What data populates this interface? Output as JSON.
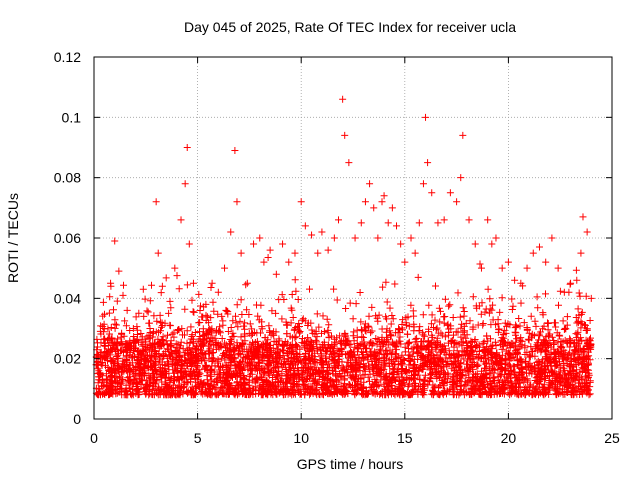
{
  "chart_data": {
    "type": "scatter",
    "title": "Day 045 of 2025, Rate Of TEC Index for receiver ucla",
    "xlabel": "GPS time / hours",
    "ylabel": "ROTI / TECUs",
    "xlim": [
      0,
      25
    ],
    "ylim": [
      0,
      0.12
    ],
    "x_ticks": [
      "0",
      "5",
      "10",
      "15",
      "20",
      "25"
    ],
    "y_ticks": [
      "0",
      "0.02",
      "0.04",
      "0.06",
      "0.08",
      "0.1",
      "0.12"
    ],
    "grid": true,
    "legend": "none",
    "marker": "plus",
    "series_color": "#ff0000",
    "series": [
      {
        "x": [
          0.1,
          0.3,
          0.5,
          0.8,
          1.0,
          1.2,
          1.4,
          1.6,
          1.9,
          2.1,
          2.4,
          2.7,
          3.0,
          3.1,
          3.3,
          3.6,
          3.9,
          4.2,
          4.4,
          4.5,
          4.6,
          4.8,
          5.1,
          5.4,
          5.7,
          6.0,
          6.3,
          6.6,
          6.8,
          6.9,
          7.1,
          7.4,
          7.7,
          8.0,
          8.2,
          8.5,
          8.8,
          9.1,
          9.4,
          9.7,
          10.0,
          10.2,
          10.5,
          10.8,
          11.0,
          11.3,
          11.6,
          11.8,
          12.0,
          12.1,
          12.3,
          12.6,
          12.9,
          13.1,
          13.3,
          13.5,
          13.7,
          13.9,
          14.0,
          14.2,
          14.4,
          14.6,
          14.8,
          15.0,
          15.3,
          15.5,
          15.7,
          15.9,
          16.0,
          16.1,
          16.3,
          16.6,
          16.9,
          17.2,
          17.5,
          17.7,
          17.8,
          18.1,
          18.4,
          18.7,
          19.0,
          19.2,
          19.4,
          19.7,
          20.0,
          20.3,
          20.6,
          20.9,
          21.2,
          21.5,
          21.8,
          22.1,
          22.4,
          22.7,
          23.0,
          23.3,
          23.5,
          23.6,
          23.8,
          24.0,
          0.2,
          0.6,
          1.1,
          1.7,
          2.3,
          3.2,
          4.0,
          5.0,
          5.9,
          6.5,
          7.6,
          8.6,
          9.6,
          10.6,
          11.5,
          12.5,
          13.6,
          14.5,
          15.4,
          16.5,
          17.4,
          18.5,
          19.5,
          20.5,
          21.5,
          22.5,
          23.4
        ],
        "y": [
          0.018,
          0.022,
          0.03,
          0.045,
          0.059,
          0.049,
          0.041,
          0.036,
          0.03,
          0.028,
          0.034,
          0.03,
          0.072,
          0.055,
          0.044,
          0.035,
          0.05,
          0.066,
          0.078,
          0.09,
          0.058,
          0.045,
          0.032,
          0.038,
          0.045,
          0.042,
          0.05,
          0.062,
          0.089,
          0.072,
          0.055,
          0.045,
          0.058,
          0.06,
          0.052,
          0.056,
          0.048,
          0.058,
          0.052,
          0.055,
          0.072,
          0.064,
          0.061,
          0.055,
          0.062,
          0.056,
          0.06,
          0.066,
          0.106,
          0.094,
          0.085,
          0.06,
          0.065,
          0.072,
          0.078,
          0.07,
          0.06,
          0.072,
          0.074,
          0.065,
          0.07,
          0.064,
          0.058,
          0.052,
          0.06,
          0.055,
          0.065,
          0.078,
          0.1,
          0.085,
          0.075,
          0.065,
          0.066,
          0.075,
          0.072,
          0.08,
          0.094,
          0.066,
          0.058,
          0.05,
          0.066,
          0.058,
          0.06,
          0.05,
          0.052,
          0.046,
          0.045,
          0.05,
          0.055,
          0.057,
          0.052,
          0.06,
          0.05,
          0.042,
          0.045,
          0.046,
          0.055,
          0.067,
          0.062,
          0.04,
          0.012,
          0.015,
          0.014,
          0.016,
          0.013,
          0.015,
          0.016,
          0.014,
          0.013,
          0.015,
          0.016,
          0.012,
          0.014,
          0.015,
          0.016,
          0.018,
          0.02,
          0.018,
          0.017,
          0.019,
          0.016,
          0.015,
          0.014,
          0.013,
          0.015,
          0.014,
          0.013
        ]
      }
    ]
  }
}
